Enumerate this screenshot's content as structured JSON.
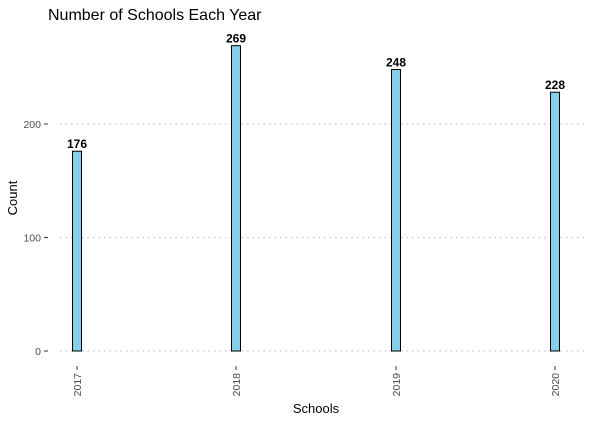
{
  "chart_data": {
    "type": "bar",
    "title": "Number of Schools Each Year",
    "xlabel": "Schools",
    "ylabel": "Count",
    "categories": [
      "2017",
      "2018",
      "2019",
      "2020"
    ],
    "values": [
      176,
      269,
      248,
      228
    ],
    "ylim": [
      0,
      290
    ],
    "yticks": [
      0,
      100,
      200
    ],
    "grid": "horizontal dotted",
    "legend": "none",
    "colors": {
      "bar_fill": "#87ceeb",
      "bar_stroke": "#000000"
    }
  }
}
